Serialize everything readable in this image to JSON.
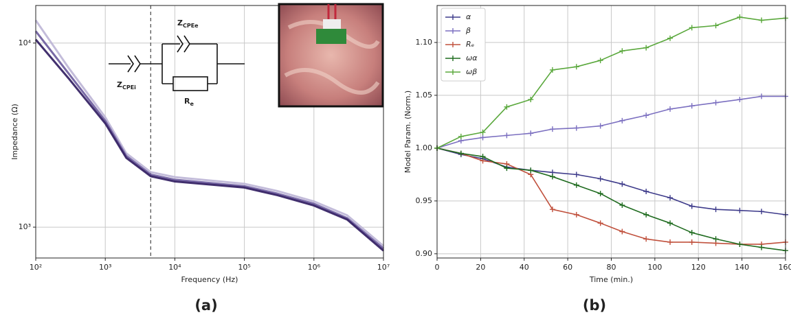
{
  "chart_data": [
    {
      "type": "line",
      "panel_label": "(a)",
      "x_label": "Frequency (Hz)",
      "y_label": "Impedance (Ω)",
      "xlog": true,
      "ylog": true,
      "grid": true,
      "xlim": [
        100,
        10000000
      ],
      "ylim": [
        680,
        16000
      ],
      "xticks": [
        {
          "value": 100,
          "label": "10²"
        },
        {
          "value": 1000,
          "label": "10³"
        },
        {
          "value": 10000,
          "label": "10⁴"
        },
        {
          "value": 100000,
          "label": "10⁵"
        },
        {
          "value": 1000000,
          "label": "10⁶"
        },
        {
          "value": 10000000,
          "label": "10⁷"
        }
      ],
      "yticks": [
        {
          "value": 1000,
          "label": "10³"
        },
        {
          "value": 10000,
          "label": "10⁴"
        }
      ],
      "vline": 4500,
      "annotations": [
        {
          "main": "Z",
          "sub": "CPEe"
        },
        {
          "main": "Z",
          "sub": "CPEi"
        },
        {
          "main": "R",
          "sub": "e"
        }
      ],
      "x": [
        100,
        300,
        1000,
        2000,
        4500,
        10000,
        100000,
        300000,
        1000000,
        3000000,
        10000000
      ],
      "series": [
        {
          "color": "#bdb5d6",
          "values": [
            13300,
            7300,
            3950,
            2520,
            1990,
            1870,
            1720,
            1570,
            1380,
            1160,
            790
          ]
        },
        {
          "color": "#6a5a9c",
          "values": [
            11600,
            6800,
            3780,
            2440,
            1930,
            1810,
            1670,
            1520,
            1340,
            1120,
            765
          ]
        },
        {
          "color": "#2e1a5e",
          "values": [
            10450,
            6400,
            3660,
            2380,
            1890,
            1770,
            1640,
            1490,
            1310,
            1100,
            745
          ]
        }
      ]
    },
    {
      "type": "line",
      "panel_label": "(b)",
      "x_label": "Time (min.)",
      "y_label": "Model Param. (Norm.)",
      "grid": true,
      "markers": true,
      "legend": "upper-left",
      "xlim": [
        0,
        160
      ],
      "ylim": [
        0.896,
        1.135
      ],
      "xticks": [
        0,
        20,
        40,
        60,
        80,
        100,
        120,
        140,
        160
      ],
      "yticks": [
        {
          "value": 0.9,
          "label": "0.90"
        },
        0.95,
        {
          "value": 1,
          "label": "1.00"
        },
        1.05,
        {
          "value": 1.1,
          "label": "1.10"
        }
      ],
      "x": [
        0,
        11,
        21,
        32,
        43,
        53,
        64,
        75,
        85,
        96,
        107,
        117,
        128,
        139,
        149,
        160
      ],
      "series": [
        {
          "name": "α",
          "color": "#3d3a8a",
          "values": [
            1.0,
            0.994,
            0.99,
            0.982,
            0.979,
            0.977,
            0.975,
            0.971,
            0.966,
            0.959,
            0.953,
            0.945,
            0.942,
            0.941,
            0.94,
            0.937
          ]
        },
        {
          "name": "β",
          "color": "#7b6fc0",
          "values": [
            1.0,
            1.007,
            1.01,
            1.012,
            1.014,
            1.018,
            1.019,
            1.021,
            1.026,
            1.031,
            1.037,
            1.04,
            1.043,
            1.046,
            1.049,
            1.049
          ]
        },
        {
          "name": "Rₑ",
          "color": "#c0503c",
          "values": [
            1.0,
            0.995,
            0.988,
            0.985,
            0.975,
            0.942,
            0.937,
            0.929,
            0.921,
            0.914,
            0.911,
            0.911,
            0.91,
            0.909,
            0.909,
            0.911
          ]
        },
        {
          "name": "ωα",
          "color": "#1f6b1f",
          "values": [
            1.0,
            0.995,
            0.992,
            0.981,
            0.979,
            0.973,
            0.965,
            0.957,
            0.946,
            0.937,
            0.929,
            0.92,
            0.914,
            0.909,
            0.906,
            0.903
          ]
        },
        {
          "name": "ωβ",
          "color": "#5aa83c",
          "values": [
            1.0,
            1.011,
            1.015,
            1.039,
            1.046,
            1.074,
            1.077,
            1.083,
            1.092,
            1.095,
            1.104,
            1.114,
            1.116,
            1.124,
            1.121,
            1.123
          ]
        }
      ]
    }
  ]
}
